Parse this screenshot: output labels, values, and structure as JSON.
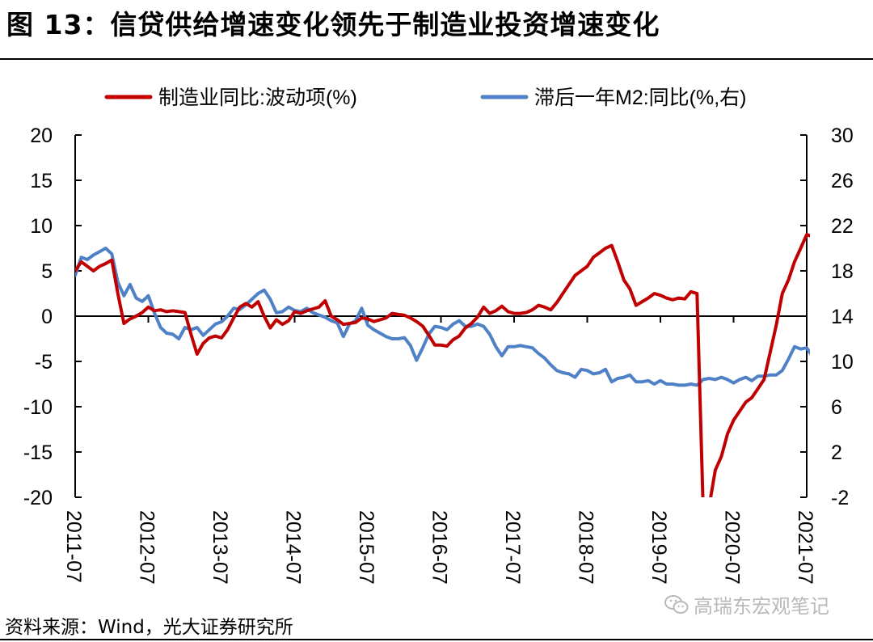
{
  "title": "图 13：信贷供给增速变化领先于制造业投资增速变化",
  "source": "资料来源：Wind，光大证券研究所",
  "watermark": "高瑞东宏观笔记",
  "watermark_icon": "wechat-icon",
  "colors": {
    "red_series": "#c00000",
    "blue_series": "#4f81c7",
    "axis": "#000000"
  },
  "chart_data": {
    "type": "line",
    "x_axis": {
      "ticks": [
        "2011-07",
        "2012-07",
        "2013-07",
        "2014-07",
        "2015-07",
        "2016-07",
        "2017-07",
        "2018-07",
        "2019-07",
        "2020-07",
        "2021-07"
      ],
      "range": [
        "2011-07",
        "2021-07"
      ]
    },
    "y_left": {
      "ticks": [
        "20",
        "15",
        "10",
        "5",
        "0",
        "-5",
        "-10",
        "-15",
        "-20"
      ],
      "range": [
        -20,
        20
      ]
    },
    "y_right": {
      "ticks": [
        "30",
        "26",
        "22",
        "18",
        "14",
        "10",
        "6",
        "2",
        "-2"
      ],
      "range": [
        -2,
        30
      ]
    },
    "zero_line": 0,
    "legend_position": "top",
    "series": [
      {
        "name": "制造业同比:波动项(%)",
        "axis": "left",
        "color": "#c00000",
        "points": [
          [
            "2011-07",
            5.0
          ],
          [
            "2011-08",
            6.0
          ],
          [
            "2011-09",
            5.5
          ],
          [
            "2011-10",
            5.0
          ],
          [
            "2011-11",
            5.5
          ],
          [
            "2011-12",
            5.8
          ],
          [
            "2012-01",
            6.2
          ],
          [
            "2012-02",
            2.5
          ],
          [
            "2012-03",
            -0.8
          ],
          [
            "2012-04",
            -0.3
          ],
          [
            "2012-05",
            0.0
          ],
          [
            "2012-06",
            0.4
          ],
          [
            "2012-07",
            1.0
          ],
          [
            "2012-08",
            0.6
          ],
          [
            "2012-09",
            0.7
          ],
          [
            "2012-10",
            0.5
          ],
          [
            "2012-11",
            0.6
          ],
          [
            "2012-12",
            0.5
          ],
          [
            "2013-01",
            0.4
          ],
          [
            "2013-02",
            -2.0
          ],
          [
            "2013-03",
            -4.2
          ],
          [
            "2013-04",
            -3.0
          ],
          [
            "2013-05",
            -2.4
          ],
          [
            "2013-06",
            -2.2
          ],
          [
            "2013-07",
            -2.4
          ],
          [
            "2013-08",
            -1.5
          ],
          [
            "2013-09",
            -0.2
          ],
          [
            "2013-10",
            1.0
          ],
          [
            "2013-11",
            1.4
          ],
          [
            "2013-12",
            1.0
          ],
          [
            "2014-01",
            1.6
          ],
          [
            "2014-02",
            0.0
          ],
          [
            "2014-03",
            -1.3
          ],
          [
            "2014-04",
            -0.4
          ],
          [
            "2014-05",
            -0.9
          ],
          [
            "2014-06",
            -0.5
          ],
          [
            "2014-07",
            0.5
          ],
          [
            "2014-08",
            0.3
          ],
          [
            "2014-09",
            0.6
          ],
          [
            "2014-10",
            0.8
          ],
          [
            "2014-11",
            1.0
          ],
          [
            "2014-12",
            1.7
          ],
          [
            "2015-01",
            0.0
          ],
          [
            "2015-02",
            -0.4
          ],
          [
            "2015-03",
            -0.9
          ],
          [
            "2015-04",
            -0.8
          ],
          [
            "2015-05",
            -0.7
          ],
          [
            "2015-06",
            -0.2
          ],
          [
            "2015-07",
            -0.3
          ],
          [
            "2015-08",
            -0.6
          ],
          [
            "2015-09",
            -0.4
          ],
          [
            "2015-10",
            -0.2
          ],
          [
            "2015-11",
            0.3
          ],
          [
            "2015-12",
            0.2
          ],
          [
            "2016-01",
            0.1
          ],
          [
            "2016-02",
            -0.2
          ],
          [
            "2016-03",
            -0.6
          ],
          [
            "2016-04",
            -1.1
          ],
          [
            "2016-05",
            -2.1
          ],
          [
            "2016-06",
            -3.2
          ],
          [
            "2016-07",
            -3.2
          ],
          [
            "2016-08",
            -3.3
          ],
          [
            "2016-09",
            -2.6
          ],
          [
            "2016-10",
            -2.2
          ],
          [
            "2016-11",
            -1.3
          ],
          [
            "2016-12",
            -0.8
          ],
          [
            "2017-01",
            -0.1
          ],
          [
            "2017-02",
            1.0
          ],
          [
            "2017-03",
            0.3
          ],
          [
            "2017-04",
            0.6
          ],
          [
            "2017-05",
            1.1
          ],
          [
            "2017-06",
            0.5
          ],
          [
            "2017-07",
            0.3
          ],
          [
            "2017-08",
            0.3
          ],
          [
            "2017-09",
            0.4
          ],
          [
            "2017-10",
            0.7
          ],
          [
            "2017-11",
            1.2
          ],
          [
            "2017-12",
            1.0
          ],
          [
            "2018-01",
            0.7
          ],
          [
            "2018-02",
            1.5
          ],
          [
            "2018-03",
            2.5
          ],
          [
            "2018-04",
            3.5
          ],
          [
            "2018-05",
            4.5
          ],
          [
            "2018-06",
            5.0
          ],
          [
            "2018-07",
            5.5
          ],
          [
            "2018-08",
            6.5
          ],
          [
            "2018-09",
            7.0
          ],
          [
            "2018-10",
            7.5
          ],
          [
            "2018-11",
            7.8
          ],
          [
            "2018-12",
            6.0
          ],
          [
            "2019-01",
            4.0
          ],
          [
            "2019-02",
            3.0
          ],
          [
            "2019-03",
            1.2
          ],
          [
            "2019-04",
            1.6
          ],
          [
            "2019-05",
            2.0
          ],
          [
            "2019-06",
            2.5
          ],
          [
            "2019-07",
            2.3
          ],
          [
            "2019-08",
            2.0
          ],
          [
            "2019-09",
            1.8
          ],
          [
            "2019-10",
            2.0
          ],
          [
            "2019-11",
            1.9
          ],
          [
            "2019-12",
            2.7
          ],
          [
            "2020-01",
            2.5
          ],
          [
            "2020-02",
            -21.0
          ],
          [
            "2020-03",
            -21.0
          ],
          [
            "2020-04",
            -17.0
          ],
          [
            "2020-05",
            -15.5
          ],
          [
            "2020-06",
            -13.0
          ],
          [
            "2020-07",
            -11.5
          ],
          [
            "2020-08",
            -10.5
          ],
          [
            "2020-09",
            -9.5
          ],
          [
            "2020-10",
            -9.0
          ],
          [
            "2020-11",
            -8.0
          ],
          [
            "2020-12",
            -7.0
          ],
          [
            "2021-01",
            -4.0
          ],
          [
            "2021-02",
            -1.0
          ],
          [
            "2021-03",
            2.5
          ],
          [
            "2021-04",
            4.0
          ],
          [
            "2021-05",
            6.0
          ],
          [
            "2021-06",
            7.5
          ],
          [
            "2021-07",
            9.0
          ],
          [
            "2021-08",
            8.8
          ]
        ]
      },
      {
        "name": "滞后一年M2:同比(%,右)",
        "axis": "right",
        "color": "#4f81c7",
        "points": [
          [
            "2011-07",
            17.6
          ],
          [
            "2011-08",
            19.2
          ],
          [
            "2011-09",
            19.0
          ],
          [
            "2011-10",
            19.4
          ],
          [
            "2011-11",
            19.7
          ],
          [
            "2011-12",
            20.0
          ],
          [
            "2012-01",
            19.5
          ],
          [
            "2012-02",
            17.0
          ],
          [
            "2012-03",
            15.8
          ],
          [
            "2012-04",
            16.8
          ],
          [
            "2012-05",
            15.6
          ],
          [
            "2012-06",
            15.3
          ],
          [
            "2012-07",
            15.8
          ],
          [
            "2012-08",
            14.3
          ],
          [
            "2012-09",
            13.0
          ],
          [
            "2012-10",
            12.5
          ],
          [
            "2012-11",
            12.4
          ],
          [
            "2012-12",
            12.0
          ],
          [
            "2013-01",
            13.0
          ],
          [
            "2013-02",
            12.8
          ],
          [
            "2013-03",
            13.0
          ],
          [
            "2013-04",
            12.3
          ],
          [
            "2013-05",
            12.8
          ],
          [
            "2013-06",
            13.3
          ],
          [
            "2013-07",
            13.5
          ],
          [
            "2013-08",
            14.0
          ],
          [
            "2013-09",
            14.7
          ],
          [
            "2013-10",
            14.6
          ],
          [
            "2013-11",
            15.0
          ],
          [
            "2013-12",
            15.5
          ],
          [
            "2014-01",
            16.0
          ],
          [
            "2014-02",
            16.3
          ],
          [
            "2014-03",
            15.5
          ],
          [
            "2014-04",
            14.3
          ],
          [
            "2014-05",
            14.4
          ],
          [
            "2014-06",
            14.8
          ],
          [
            "2014-07",
            14.5
          ],
          [
            "2014-08",
            14.4
          ],
          [
            "2014-09",
            14.7
          ],
          [
            "2014-10",
            14.3
          ],
          [
            "2014-11",
            14.1
          ],
          [
            "2014-12",
            13.9
          ],
          [
            "2015-01",
            13.6
          ],
          [
            "2015-02",
            13.4
          ],
          [
            "2015-03",
            12.2
          ],
          [
            "2015-04",
            13.3
          ],
          [
            "2015-05",
            13.6
          ],
          [
            "2015-06",
            14.7
          ],
          [
            "2015-07",
            13.2
          ],
          [
            "2015-08",
            12.8
          ],
          [
            "2015-09",
            12.5
          ],
          [
            "2015-10",
            12.2
          ],
          [
            "2015-11",
            12.0
          ],
          [
            "2015-12",
            12.0
          ],
          [
            "2016-01",
            12.1
          ],
          [
            "2016-02",
            11.4
          ],
          [
            "2016-03",
            10.1
          ],
          [
            "2016-04",
            11.2
          ],
          [
            "2016-05",
            12.4
          ],
          [
            "2016-06",
            13.1
          ],
          [
            "2016-07",
            13.0
          ],
          [
            "2016-08",
            12.8
          ],
          [
            "2016-09",
            13.3
          ],
          [
            "2016-10",
            13.6
          ],
          [
            "2016-11",
            13.1
          ],
          [
            "2016-12",
            13.1
          ],
          [
            "2017-01",
            13.3
          ],
          [
            "2017-02",
            13.1
          ],
          [
            "2017-03",
            12.4
          ],
          [
            "2017-04",
            11.3
          ],
          [
            "2017-05",
            10.5
          ],
          [
            "2017-06",
            11.3
          ],
          [
            "2017-07",
            11.3
          ],
          [
            "2017-08",
            11.4
          ],
          [
            "2017-09",
            11.3
          ],
          [
            "2017-10",
            11.2
          ],
          [
            "2017-11",
            10.7
          ],
          [
            "2017-12",
            10.3
          ],
          [
            "2018-01",
            9.7
          ],
          [
            "2018-02",
            9.2
          ],
          [
            "2018-03",
            9.0
          ],
          [
            "2018-04",
            8.9
          ],
          [
            "2018-05",
            8.6
          ],
          [
            "2018-06",
            9.3
          ],
          [
            "2018-07",
            9.2
          ],
          [
            "2018-08",
            8.9
          ],
          [
            "2018-09",
            9.0
          ],
          [
            "2018-10",
            9.3
          ],
          [
            "2018-11",
            8.2
          ],
          [
            "2018-12",
            8.5
          ],
          [
            "2019-01",
            8.6
          ],
          [
            "2019-02",
            8.8
          ],
          [
            "2019-03",
            8.2
          ],
          [
            "2019-04",
            8.2
          ],
          [
            "2019-05",
            8.3
          ],
          [
            "2019-06",
            8.0
          ],
          [
            "2019-07",
            8.3
          ],
          [
            "2019-08",
            8.0
          ],
          [
            "2019-09",
            8.0
          ],
          [
            "2019-10",
            7.9
          ],
          [
            "2019-11",
            7.9
          ],
          [
            "2019-12",
            8.0
          ],
          [
            "2020-01",
            7.9
          ],
          [
            "2020-02",
            8.4
          ],
          [
            "2020-03",
            8.5
          ],
          [
            "2020-04",
            8.4
          ],
          [
            "2020-05",
            8.6
          ],
          [
            "2020-06",
            8.4
          ],
          [
            "2020-07",
            8.1
          ],
          [
            "2020-08",
            8.4
          ],
          [
            "2020-09",
            8.6
          ],
          [
            "2020-10",
            8.3
          ],
          [
            "2020-11",
            8.7
          ],
          [
            "2020-12",
            8.7
          ],
          [
            "2021-01",
            8.8
          ],
          [
            "2021-02",
            8.8
          ],
          [
            "2021-03",
            9.2
          ],
          [
            "2021-04",
            10.2
          ],
          [
            "2021-05",
            11.3
          ],
          [
            "2021-06",
            11.1
          ],
          [
            "2021-07",
            11.2
          ],
          [
            "2021-08",
            10.4
          ]
        ]
      }
    ]
  }
}
